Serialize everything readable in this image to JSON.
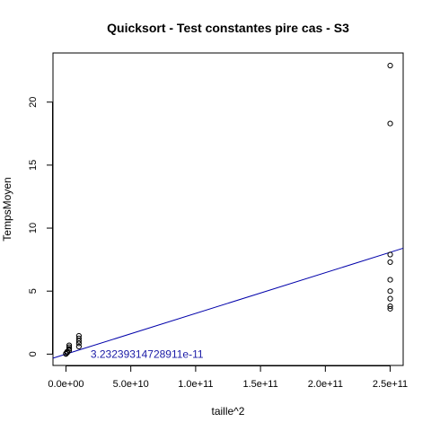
{
  "chart_data": {
    "type": "scatter",
    "title": "Quicksort - Test constantes pire cas - S3",
    "xlabel": "taille^2",
    "ylabel": "TempsMoyen",
    "xlim": [
      -10000000000.0,
      260000000000.0
    ],
    "ylim": [
      -0.9,
      23.9
    ],
    "x_ticks": [
      0,
      50000000000.0,
      100000000000.0,
      150000000000.0,
      200000000000.0,
      250000000000.0
    ],
    "x_tick_labels": [
      "0.0e+00",
      "5.0e+10",
      "1.0e+11",
      "1.5e+11",
      "2.0e+11",
      "2.5e+11"
    ],
    "y_ticks": [
      0,
      5,
      10,
      15,
      20
    ],
    "y_tick_labels": [
      "0",
      "5",
      "10",
      "15",
      "20"
    ],
    "grid": false,
    "points": [
      {
        "x": 0,
        "y": 0.01
      },
      {
        "x": 0,
        "y": 0.03
      },
      {
        "x": 0,
        "y": 0.05
      },
      {
        "x": 1000000000.0,
        "y": 0.12
      },
      {
        "x": 1000000000.0,
        "y": 0.2
      },
      {
        "x": 2500000000.0,
        "y": 0.3
      },
      {
        "x": 2500000000.0,
        "y": 0.42
      },
      {
        "x": 2500000000.0,
        "y": 0.55
      },
      {
        "x": 2500000000.0,
        "y": 0.7
      },
      {
        "x": 10000000000.0,
        "y": 0.6
      },
      {
        "x": 10000000000.0,
        "y": 0.85
      },
      {
        "x": 10000000000.0,
        "y": 1.05
      },
      {
        "x": 10000000000.0,
        "y": 1.25
      },
      {
        "x": 10000000000.0,
        "y": 1.45
      },
      {
        "x": 250000000000.0,
        "y": 3.6
      },
      {
        "x": 250000000000.0,
        "y": 3.8
      },
      {
        "x": 250000000000.0,
        "y": 4.4
      },
      {
        "x": 250000000000.0,
        "y": 5.0
      },
      {
        "x": 250000000000.0,
        "y": 5.9
      },
      {
        "x": 250000000000.0,
        "y": 7.3
      },
      {
        "x": 250000000000.0,
        "y": 7.9
      },
      {
        "x": 250000000000.0,
        "y": 18.3
      },
      {
        "x": 250000000000.0,
        "y": 22.9
      }
    ],
    "fit_line": {
      "slope": 3.23239314728911e-11,
      "intercept": 0,
      "color": "#0000aa"
    },
    "annotation": {
      "text": "3.23239314728911e-11",
      "x": 19000000000.0,
      "y": 0,
      "color": "#1a1aa6"
    },
    "point_color": "#000000"
  }
}
